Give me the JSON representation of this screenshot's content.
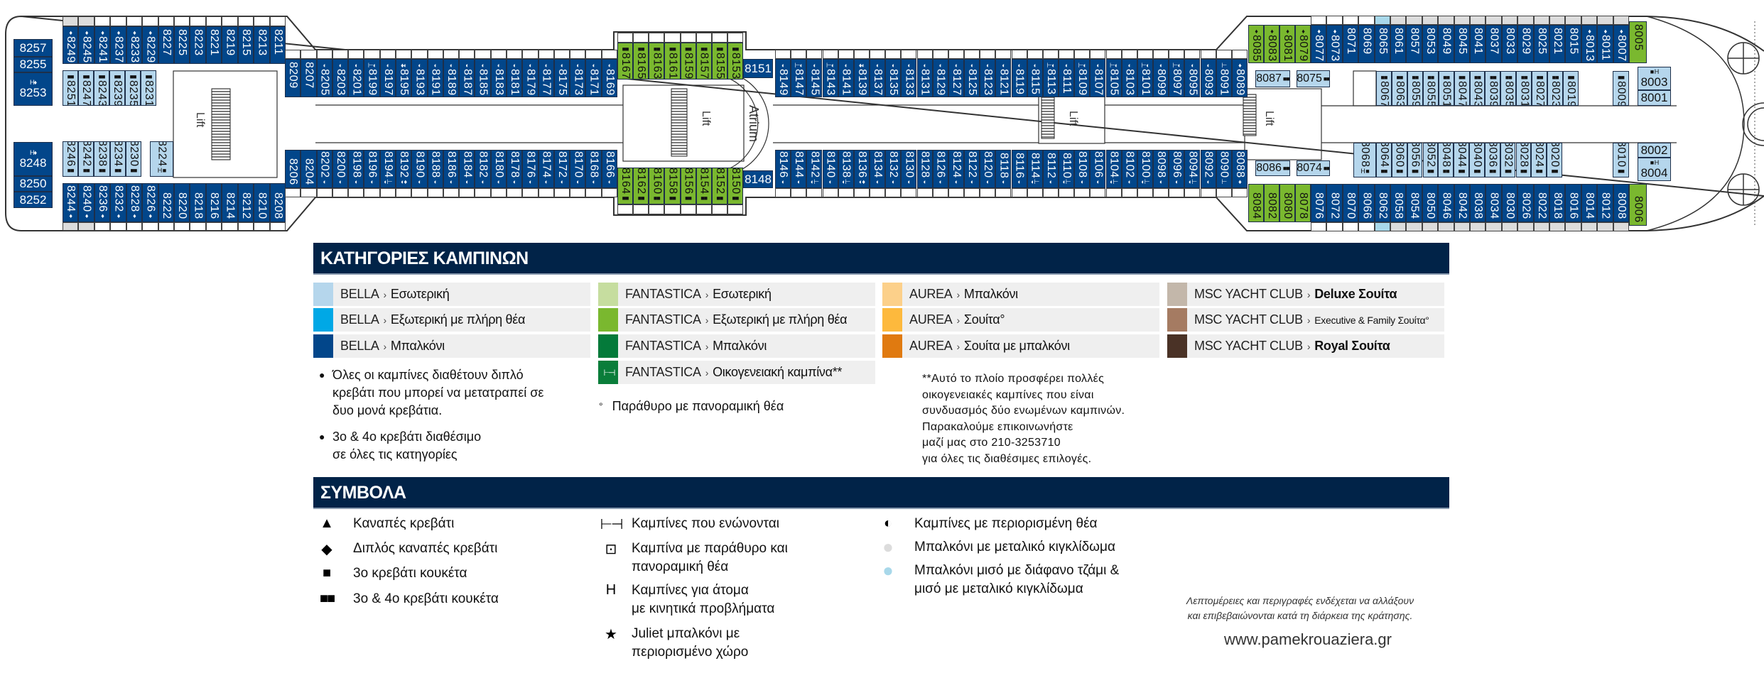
{
  "colors": {
    "bella-interior": "#b5d6ec",
    "bella-exterior": "#00a8e6",
    "bella-balcony": "#02468a",
    "fantastica-interior": "#c6dd9f",
    "fantastica-exterior": "#7ab82f",
    "fantastica-balcony": "#047a3a",
    "fantastica-family": "#0a7d3a",
    "aurea-balcony": "#fcd08a",
    "aurea-suite": "#fdb93d",
    "aurea-suite-balcony": "#e07a10",
    "yacht-deluxe": "#c3b7aa",
    "yacht-executive": "#a57b62",
    "yacht-royal": "#4a3226",
    "header": "#012348",
    "rail-metal": "#dcdcdc",
    "rail-half-glass": "#a8d8ea"
  },
  "deck": {
    "labels": {
      "lift": "Lift",
      "atrium": "Atrium"
    },
    "rows": {
      "aft_top": {
        "cat": "bella-balcony",
        "cabins": [
          "8249",
          "8245",
          "8241",
          "8237",
          "8233",
          "8229",
          "8227",
          "8225",
          "8223",
          "8221",
          "8219",
          "8215",
          "8213",
          "8211"
        ],
        "symbols": {
          "8249": "♦",
          "8245": "♦",
          "8241": "♦",
          "8237": "♦",
          "8233": "♦",
          "8229": "♦"
        },
        "rails": {
          "8249": "metal",
          "8245": "metal"
        }
      },
      "aft_bottom": {
        "cat": "bella-balcony",
        "cabins": [
          "8244",
          "8240",
          "8236",
          "8232",
          "8228",
          "8226",
          "8222",
          "8220",
          "8218",
          "8216",
          "8214",
          "8212",
          "8210",
          "8208"
        ],
        "symbols": {
          "8244": "♦",
          "8240": "♦",
          "8236": "♦",
          "8232": "♦",
          "8228": "♦",
          "8226": "♦"
        },
        "rails": {
          "8244": "metal",
          "8240": "metal"
        }
      },
      "aft_inner_top": {
        "cat": "bella-interior",
        "cabins": [
          "8251",
          "8247",
          "8243",
          "8239",
          "8235",
          "8231"
        ],
        "symbols": {
          "8251": "■■",
          "8247": "■■",
          "8243": "■■",
          "8239": "■■",
          "8235": "■■",
          "8231": "■■"
        }
      },
      "aft_inner_bottom": {
        "cat": "bella-interior",
        "cabins": [
          "8246",
          "8242",
          "8238",
          "8234",
          "8230"
        ],
        "symbols": {
          "8246": "■■",
          "8242": "■■",
          "8238": "■■",
          "8234": "■■",
          "8230": "■■"
        }
      },
      "mid_top_a": {
        "cat": "bella-balcony",
        "cabins": [
          "8209",
          "8207",
          "8205",
          "8203",
          "8201",
          "8199",
          "8197",
          "8195",
          "8193",
          "8191",
          "8189",
          "8187",
          "8185",
          "8183",
          "8181",
          "8179",
          "8177",
          "8175",
          "8173",
          "8171",
          "8169"
        ],
        "symbols": {
          "8205": "◐",
          "8203": "◐",
          "8201": "◐",
          "8199": "⊢◐",
          "8197": "◐",
          "8195": "♦◐",
          "8193": "◐",
          "8191": "◐",
          "8189": "◐",
          "8187": "◐",
          "8185": "◐",
          "8183": "◐",
          "8181": "◐",
          "8179": "◐",
          "8177": "◐",
          "8175": "◐",
          "8173": "◐",
          "8171": "◐",
          "8169": "◐"
        }
      },
      "green_top": {
        "cat": "fantastica-exterior",
        "cabins": [
          "8167",
          "8165",
          "8163",
          "8161",
          "8159",
          "8157",
          "8155",
          "8153"
        ],
        "symbols": {
          "8167": "■■",
          "8165": "■■",
          "8163": "■■",
          "8161": "■■",
          "8159": "■■",
          "8157": "■■",
          "8155": "■■",
          "8153": "■■"
        }
      },
      "mid_top_b": {
        "cat": "bella-balcony",
        "cabins": [
          "8149",
          "8147",
          "8145",
          "8143",
          "8141",
          "8139",
          "8137",
          "8135",
          "8133",
          "8131",
          "8129",
          "8127",
          "8125",
          "8123",
          "8121",
          "8119",
          "8115",
          "8113",
          "8111",
          "8109",
          "8107",
          "8105",
          "8103",
          "8101",
          "8099",
          "8097",
          "8095",
          "8093",
          "8091",
          "8089"
        ],
        "symbols": {
          "8149": "◐",
          "8147": "⊢◐",
          "8145": "◐",
          "8143": "⊢◐",
          "8141": "◐",
          "8139": "♦◐",
          "8137": "◐",
          "8135": "◐",
          "8133": "◐",
          "8131": "◐",
          "8129": "◐",
          "8127": "◐",
          "8125": "◐",
          "8123": "◐",
          "8121": "◐",
          "8119": "◐",
          "8115": "◐",
          "8113": "⊢◐",
          "8111": "◐",
          "8109": "⊢◐",
          "8107": "◐",
          "8105": "⊢◐",
          "8103": "◐",
          "8101": "⊢◐",
          "8099": "◐",
          "8097": "⊢◐",
          "8095": "◐",
          "8093": "◐",
          "8091": "⊢",
          "8089": "♦"
        }
      },
      "mid_bot_a": {
        "cat": "bella-balcony",
        "cabins": [
          "8206",
          "8204",
          "8202",
          "8200",
          "8198",
          "8196",
          "8194",
          "8192",
          "8190",
          "8188",
          "8186",
          "8184",
          "8182",
          "8180",
          "8178",
          "8176",
          "8174",
          "8172",
          "8170",
          "8168",
          "8166"
        ],
        "symbols": {
          "8202": "◐",
          "8200": "◐",
          "8198": "◐",
          "8196": "◐",
          "8194": "◐⊢",
          "8192": "◐♦",
          "8190": "◐",
          "8188": "◐",
          "8186": "◐",
          "8184": "◐",
          "8182": "◐",
          "8180": "◐",
          "8178": "◐",
          "8176": "◐",
          "8174": "◐",
          "8172": "◐",
          "8170": "◐",
          "8168": "◐",
          "8166": "◐"
        }
      },
      "green_bot": {
        "cat": "fantastica-exterior",
        "cabins": [
          "8164",
          "8162",
          "8160",
          "8158",
          "8156",
          "8154",
          "8152",
          "8150"
        ],
        "symbols": {
          "8164": "■■",
          "8162": "■■",
          "8160": "■■",
          "8158": "■■",
          "8156": "■■",
          "8154": "■■",
          "8152": "■■",
          "8150": "■■"
        }
      },
      "mid_bot_b": {
        "cat": "bella-balcony",
        "cabins": [
          "8146",
          "8144",
          "8142",
          "8140",
          "8138",
          "8136",
          "8134",
          "8132",
          "8130",
          "8128",
          "8126",
          "8124",
          "8122",
          "8120",
          "8118",
          "8116",
          "8114",
          "8112",
          "8110",
          "8108",
          "8106",
          "8104",
          "8102",
          "8100",
          "8098",
          "8096",
          "8094",
          "8092",
          "8090",
          "8088"
        ],
        "symbols": {
          "8146": "◐",
          "8144": "◐",
          "8142": "◐⊢",
          "8140": "◐",
          "8138": "◐⊢",
          "8136": "◐♦",
          "8134": "◐",
          "8132": "◐",
          "8130": "◐",
          "8128": "◐",
          "8126": "◐",
          "8124": "◐",
          "8122": "◐",
          "8120": "◐",
          "8118": "◐",
          "8116": "◐",
          "8114": "◐⊢",
          "8112": "◐",
          "8110": "◐⊢",
          "8108": "◐",
          "8106": "◐",
          "8104": "◐⊢",
          "8102": "◐",
          "8100": "◐⊢",
          "8098": "◐",
          "8096": "◐",
          "8094": "◐⊢",
          "8092": "◐",
          "8090": "⊢",
          "8088": "♦"
        }
      },
      "fwd_top_green": {
        "cat": "fantastica-exterior",
        "cabins": [
          "8085",
          "8083",
          "8081",
          "8079"
        ],
        "symbols": {
          "8085": "♦",
          "8083": "♦",
          "8081": "♦",
          "8079": "♦"
        }
      },
      "fwd_top_blue": {
        "cat": "bella-balcony",
        "cabins": [
          "8077",
          "8073",
          "8071",
          "8069",
          "8065",
          "8061",
          "8057",
          "8053",
          "8049",
          "8045",
          "8041",
          "8037",
          "8033",
          "8029",
          "8025",
          "8021",
          "8015",
          "8013",
          "8011",
          "8007"
        ],
        "symbols": {
          "8077": "♦",
          "8073": "♦",
          "8013": "♦",
          "8011": "♦",
          "8007": "♦"
        },
        "rails": {
          "8065": "half-glass",
          "8061": "metal",
          "8057": "metal",
          "8053": "metal",
          "8049": "metal",
          "8045": "metal",
          "8041": "metal",
          "8037": "metal",
          "8033": "metal",
          "8029": "metal",
          "8025": "metal",
          "8021": "metal",
          "8015": "metal",
          "8013": "metal",
          "8011": "metal",
          "8007": "metal"
        }
      },
      "fwd_bot_green": {
        "cat": "fantastica-exterior",
        "cabins": [
          "8084",
          "8082",
          "8080",
          "8078"
        ],
        "symbols": {}
      },
      "fwd_bot_blue": {
        "cat": "bella-balcony",
        "cabins": [
          "8076",
          "8072",
          "8070",
          "8066",
          "8062",
          "8058",
          "8054",
          "8050",
          "8046",
          "8042",
          "8038",
          "8034",
          "8030",
          "8026",
          "8022",
          "8018",
          "8016",
          "8014",
          "8012",
          "8008"
        ],
        "symbols": {},
        "rails": {
          "8062": "half-glass",
          "8058": "metal",
          "8054": "metal",
          "8050": "metal",
          "8046": "metal",
          "8042": "metal",
          "8038": "metal",
          "8034": "metal",
          "8030": "metal",
          "8026": "metal",
          "8022": "metal",
          "8018": "metal",
          "8016": "metal",
          "8014": "metal",
          "8012": "metal",
          "8008": "metal"
        }
      },
      "fwd_inner_top": {
        "cat": "bella-interior",
        "cabins": [
          "8067",
          "8063",
          "8059",
          "8055",
          "8051",
          "8047",
          "8043",
          "8039",
          "8035",
          "8031",
          "8027",
          "8023",
          "8019"
        ],
        "symbols": {
          "8067": "■■",
          "8063": "■■",
          "8059": "■■",
          "8055": "■■",
          "8051": "■■",
          "8047": "■■",
          "8043": "■■",
          "8039": "■■",
          "8035": "■■",
          "8031": "■■",
          "8027": "■■",
          "8023": "■■",
          "8019": "■■"
        }
      },
      "fwd_inner_bottom": {
        "cat": "bella-interior",
        "cabins": [
          "8064",
          "8060",
          "8056",
          "8052",
          "8048",
          "8044",
          "8040",
          "8036",
          "8032",
          "8028",
          "8024",
          "8020"
        ],
        "symbols": {
          "8064": "■■",
          "8060": "■■",
          "8056": "■■",
          "8052": "■■",
          "8048": "■■",
          "8044": "■■",
          "8040": "■■",
          "8036": "■■",
          "8032": "■■",
          "8028": "■■",
          "8024": "■■",
          "8020": "■■"
        }
      }
    },
    "singles": [
      {
        "n": "8257",
        "cat": "bella-balcony"
      },
      {
        "n": "8255",
        "cat": "bella-balcony"
      },
      {
        "n": "8253",
        "cat": "bella-balcony",
        "s": "H♦"
      },
      {
        "n": "8248",
        "cat": "bella-balcony",
        "s": "H♦"
      },
      {
        "n": "8250",
        "cat": "bella-balcony"
      },
      {
        "n": "8252",
        "cat": "bella-balcony"
      },
      {
        "n": "8224",
        "cat": "bella-interior",
        "s": "H ■"
      },
      {
        "n": "8151",
        "cat": "bella-balcony"
      },
      {
        "n": "8148",
        "cat": "bella-balcony"
      },
      {
        "n": "8005",
        "cat": "fantastica-exterior"
      },
      {
        "n": "8006",
        "cat": "fantastica-exterior"
      },
      {
        "n": "8087",
        "cat": "bella-interior",
        "s": "■■"
      },
      {
        "n": "8075",
        "cat": "bella-interior",
        "s": "■■"
      },
      {
        "n": "8086",
        "cat": "bella-interior",
        "s": "■■"
      },
      {
        "n": "8074",
        "cat": "bella-interior",
        "s": "■■"
      },
      {
        "n": "8009",
        "cat": "bella-interior",
        "s": "■■"
      },
      {
        "n": "8010",
        "cat": "bella-interior",
        "s": "■■"
      },
      {
        "n": "8068",
        "cat": "bella-interior",
        "s": "H ■"
      },
      {
        "n": "8003",
        "cat": "bella-interior",
        "s": "■ H"
      },
      {
        "n": "8001",
        "cat": "bella-interior"
      },
      {
        "n": "8002",
        "cat": "bella-interior"
      },
      {
        "n": "8004",
        "cat": "bella-interior",
        "s": "■ H"
      }
    ]
  },
  "categories": {
    "title": "ΚΑΤΗΓΟΡΙΕΣ ΚΑΜΠΙΝΩΝ",
    "separator": "›",
    "columns": [
      [
        {
          "brand": "BELLA",
          "label": "Εσωτερική",
          "color": "bella-interior"
        },
        {
          "brand": "BELLA",
          "label": "Εξωτερική με πλήρη θέα",
          "color": "bella-exterior"
        },
        {
          "brand": "BELLA",
          "label": "Μπαλκόνι",
          "color": "bella-balcony"
        }
      ],
      [
        {
          "brand": "FANTASTICA",
          "label": "Εσωτερική",
          "color": "fantastica-interior"
        },
        {
          "brand": "FANTASTICA",
          "label": "Εξωτερική με πλήρη θέα",
          "color": "fantastica-exterior"
        },
        {
          "brand": "FANTASTICA",
          "label": "Μπαλκόνι",
          "color": "fantastica-balcony"
        },
        {
          "brand": "FANTASTICA",
          "label": "Οικογενειακή καμπίνα**",
          "color": "fantastica-family",
          "icon": "connecting-icon"
        }
      ],
      [
        {
          "brand": "AUREA",
          "label": "Μπαλκόνι",
          "color": "aurea-balcony"
        },
        {
          "brand": "AUREA",
          "label": "Σουίτα°",
          "color": "aurea-suite"
        },
        {
          "brand": "AUREA",
          "label": "Σουίτα με μπαλκόνι",
          "color": "aurea-suite-balcony"
        }
      ],
      [
        {
          "brand": "MSC YACHT CLUB",
          "label": "Deluxe Σουίτα",
          "color": "yacht-deluxe",
          "bold": true
        },
        {
          "brand": "MSC YACHT CLUB",
          "label": "Executive & Family Σουίτα°",
          "color": "yacht-executive",
          "small": true
        },
        {
          "brand": "MSC YACHT CLUB",
          "label": "Royal Σουίτα",
          "color": "yacht-royal",
          "bold": true
        }
      ]
    ],
    "notes": {
      "beds": [
        "Όλες οι καμπίνες διαθέτουν διπλό",
        "κρεβάτι που μπορεί να μετατραπεί σε",
        "δυο μονά κρεβάτια."
      ],
      "extra_beds": [
        "3ο & 4ο κρεβάτι διαθέσιμο",
        "σε όλες τις κατηγορίες"
      ],
      "window": "Παράθυρο με πανοραμική θέα",
      "window_mark": "°",
      "family": [
        "**Αυτό το πλοίο προσφέρει πολλές",
        "οικογενειακές καμπίνες που είναι",
        "συνδυασμός δύο ενωμένων καμπινών.",
        "Παρακαλούμε επικοινωνήστε",
        "μαζί μας στο 210-3253710",
        "για όλες τις διαθέσιμες επιλογές."
      ]
    }
  },
  "symbols": {
    "title": "ΣΥΜΒΟΛΑ",
    "items": [
      {
        "icon": "▲",
        "name": "triangle-icon",
        "text": [
          "Καναπές κρεβάτι"
        ]
      },
      {
        "icon": "◆",
        "name": "diamond-icon",
        "text": [
          "Διπλός καναπές κρεβάτι"
        ]
      },
      {
        "icon": "■",
        "name": "square-icon",
        "text": [
          "3ο κρεβάτι κουκέτα"
        ]
      },
      {
        "icon": "■■",
        "name": "double-square-icon",
        "text": [
          "3ο & 4ο κρεβάτι κουκέτα"
        ]
      },
      {
        "icon": "⊢⊣",
        "name": "connecting-icon",
        "text": [
          "Καμπίνες που ενώνονται"
        ]
      },
      {
        "icon": "⊡",
        "name": "window-icon",
        "text": [
          "Καμπίνα με παράθυρο και",
          "πανοραμική θέα"
        ]
      },
      {
        "icon": "H",
        "name": "accessible-icon",
        "text": [
          "Καμπίνες για άτομα",
          "με κινητικά προβλήματα"
        ]
      },
      {
        "icon": "★",
        "name": "star-icon",
        "text": [
          "Juliet μπαλκόνι με",
          "περιορισμένο χώρο"
        ]
      },
      {
        "icon": "◐",
        "name": "half-circle-icon",
        "text": [
          "Καμπίνες με περιορισμένη θέα"
        ]
      },
      {
        "icon": "●",
        "name": "gray-dot-icon",
        "color": "rail-metal",
        "text": [
          "Μπαλκόνι με μεταλικό κιγκλίδωμα"
        ]
      },
      {
        "icon": "●",
        "name": "blue-dot-icon",
        "color": "rail-half-glass",
        "text": [
          "Μπαλκόνι μισό με διάφανο τζάμι &",
          "μισό με μεταλικό κιγκλίδωμα"
        ]
      }
    ]
  },
  "footer": {
    "disclaimer": [
      "Λεπτομέρειες και περιγραφές ενδέχεται να αλλάξουν",
      "και επιβεβαιώνονται κατά τη διάρκεια της κράτησης."
    ],
    "website": "www.pamekrouaziera.gr"
  }
}
